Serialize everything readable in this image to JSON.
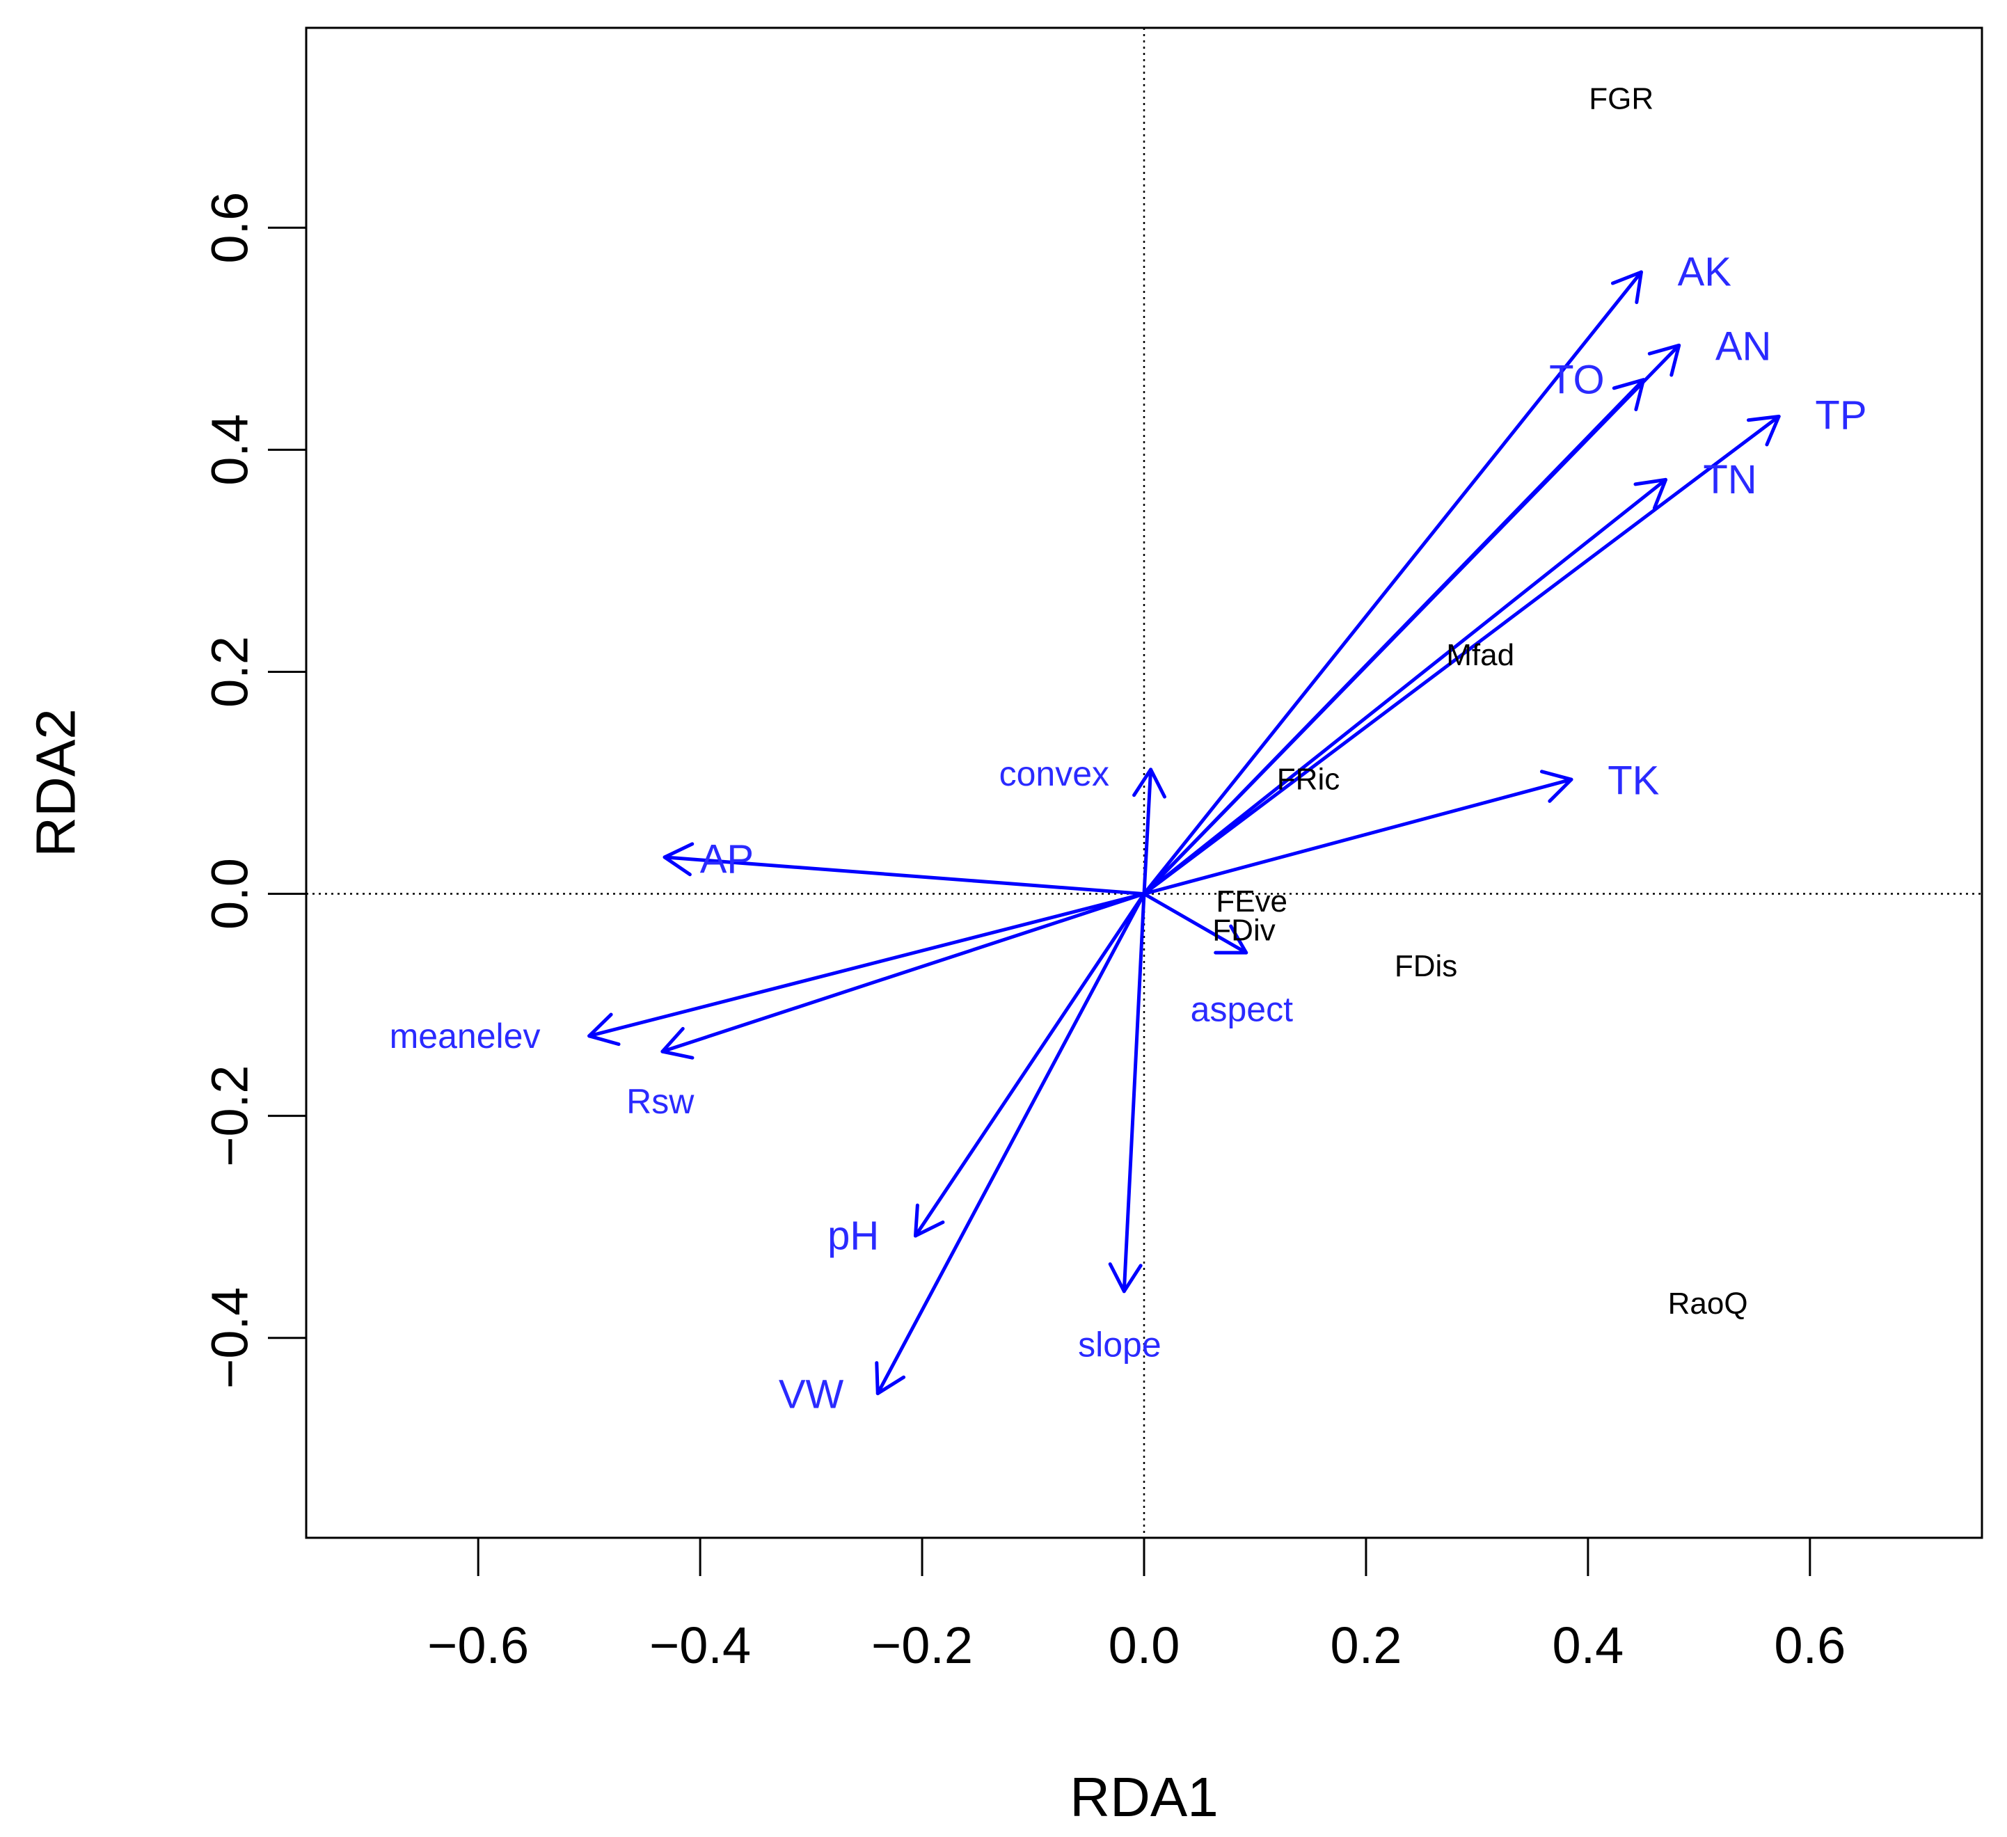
{
  "chart_data": {
    "type": "scatter",
    "subtype": "rda-biplot",
    "title": "",
    "xlabel": "RDA1",
    "ylabel": "RDA2",
    "xlim": [
      -0.755,
      0.755
    ],
    "ylim": [
      -0.58,
      0.78
    ],
    "xticks": [
      -0.6,
      -0.4,
      -0.2,
      0.0,
      0.2,
      0.4,
      0.6
    ],
    "xtick_labels": [
      "−0.6",
      "−0.4",
      "−0.2",
      "0.0",
      "0.2",
      "0.4",
      "0.6"
    ],
    "yticks": [
      -0.4,
      -0.2,
      0.0,
      0.2,
      0.4,
      0.6
    ],
    "ytick_labels": [
      "−0.4",
      "−0.2",
      "0.0",
      "0.2",
      "0.4",
      "0.6"
    ],
    "reference_lines": {
      "x": 0.0,
      "y": 0.0,
      "style": "dotted"
    },
    "arrow_color": "#0000ff",
    "label_color": "#2a2aff",
    "species_color": "#000000",
    "arrows": [
      {
        "name": "AK",
        "x": 0.448,
        "y": 0.56,
        "label": "AK",
        "lx": 0.505,
        "ly": 0.56
      },
      {
        "name": "AN",
        "x": 0.482,
        "y": 0.494,
        "label": "AN",
        "lx": 0.54,
        "ly": 0.493
      },
      {
        "name": "TO",
        "x": 0.45,
        "y": 0.463,
        "label": "TO",
        "lx": 0.39,
        "ly": 0.463
      },
      {
        "name": "TP",
        "x": 0.572,
        "y": 0.43,
        "label": "TP",
        "lx": 0.628,
        "ly": 0.431
      },
      {
        "name": "TN",
        "x": 0.47,
        "y": 0.373,
        "label": "TN",
        "lx": 0.528,
        "ly": 0.373
      },
      {
        "name": "TK",
        "x": 0.385,
        "y": 0.103,
        "label": "TK",
        "lx": 0.441,
        "ly": 0.102
      },
      {
        "name": "convex",
        "x": 0.006,
        "y": 0.112,
        "label": "convex",
        "lx": -0.081,
        "ly": 0.108
      },
      {
        "name": "AP",
        "x": -0.432,
        "y": 0.033,
        "label": "AP",
        "lx": -0.376,
        "ly": 0.031
      },
      {
        "name": "aspect",
        "x": 0.092,
        "y": -0.053,
        "label": "aspect",
        "lx": 0.088,
        "ly": -0.104
      },
      {
        "name": "meanelev",
        "x": -0.5,
        "y": -0.128,
        "label": "meanelev",
        "lx": -0.612,
        "ly": -0.128
      },
      {
        "name": "Rsw",
        "x": -0.434,
        "y": -0.142,
        "label": "Rsw",
        "lx": -0.436,
        "ly": -0.187
      },
      {
        "name": "pH",
        "x": -0.206,
        "y": -0.308,
        "label": "pH",
        "lx": -0.262,
        "ly": -0.308
      },
      {
        "name": "slope",
        "x": -0.018,
        "y": -0.358,
        "label": "slope",
        "lx": -0.022,
        "ly": -0.406
      },
      {
        "name": "VW",
        "x": -0.24,
        "y": -0.45,
        "label": "VW",
        "lx": -0.3,
        "ly": -0.451
      }
    ],
    "species": [
      {
        "name": "FGR",
        "label": "FGR",
        "x": 0.43,
        "y": 0.716
      },
      {
        "name": "Mfad",
        "label": "Mfad",
        "x": 0.303,
        "y": 0.215
      },
      {
        "name": "FRic",
        "label": "FRic",
        "x": 0.148,
        "y": 0.103
      },
      {
        "name": "FEve",
        "label": "FEve",
        "x": 0.097,
        "y": -0.007
      },
      {
        "name": "FDiv",
        "label": "FDiv",
        "x": 0.09,
        "y": -0.033
      },
      {
        "name": "FDis",
        "label": "FDis",
        "x": 0.254,
        "y": -0.065
      },
      {
        "name": "RaoQ",
        "label": "RaoQ",
        "x": 0.508,
        "y": -0.369
      }
    ]
  }
}
